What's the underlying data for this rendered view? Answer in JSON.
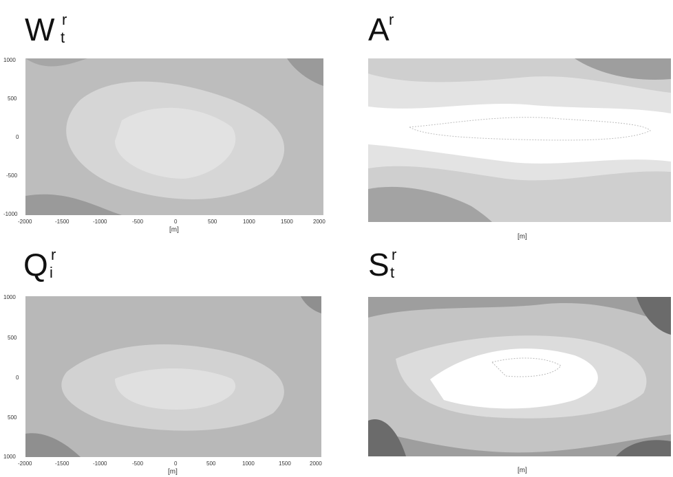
{
  "panels": [
    {
      "key": "p1",
      "title_base": "W",
      "title_sup": "r",
      "title_sub": "t",
      "x_ticks": [
        "-2000",
        "-1500",
        "-1000",
        "-500",
        "0",
        "500",
        "1000",
        "1500",
        "2000"
      ],
      "y_ticks": [
        "1000",
        "500",
        "0",
        "-500",
        "-1000"
      ],
      "xlabel": "[m]"
    },
    {
      "key": "p2",
      "title_base": "A",
      "title_sup": "r",
      "title_sub": "",
      "x_ticks": [],
      "y_ticks": [],
      "xlabel": "[m]"
    },
    {
      "key": "p3",
      "title_base": "Q",
      "title_sup": "r",
      "title_sub": "i",
      "x_ticks": [
        "-2000",
        "-1500",
        "-1000",
        "-500",
        "0",
        "500",
        "1000",
        "1500",
        "2000"
      ],
      "y_ticks": [
        "1000",
        "500",
        "0",
        "500",
        "1000"
      ],
      "xlabel": "[m]"
    },
    {
      "key": "p4",
      "title_base": "S",
      "title_sup": "r",
      "title_sub": "t",
      "x_ticks": [],
      "y_ticks": [],
      "xlabel": "[m]"
    }
  ],
  "colors": {
    "light": "#e6e6e6",
    "mid": "#c6c6c6",
    "dark": "#999999",
    "darker": "#6b6b6b",
    "white": "#ffffff"
  }
}
